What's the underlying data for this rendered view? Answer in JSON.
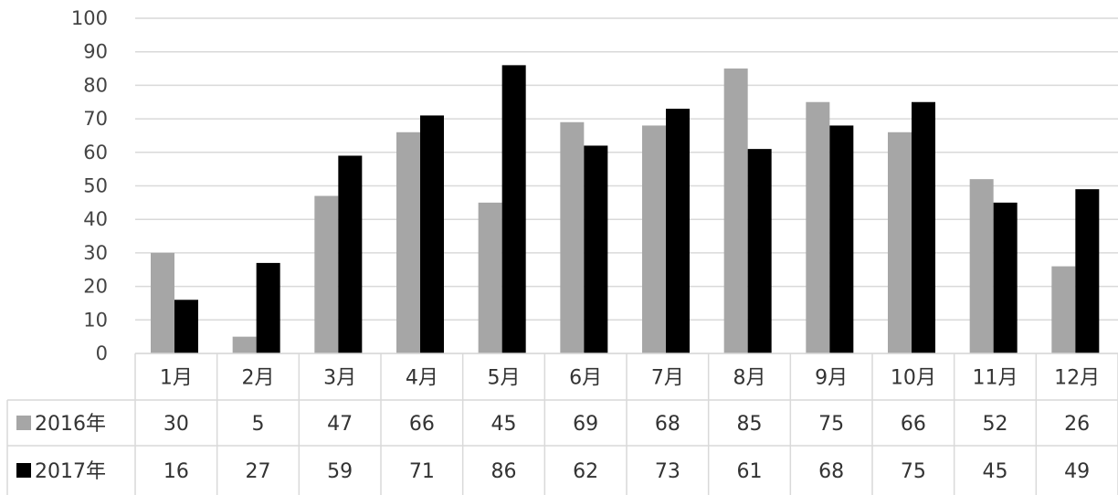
{
  "chart_data": {
    "type": "bar",
    "categories": [
      "1月",
      "2月",
      "3月",
      "4月",
      "5月",
      "6月",
      "7月",
      "8月",
      "9月",
      "10月",
      "11月",
      "12月"
    ],
    "series": [
      {
        "name": "2016年",
        "color": "#a6a6a6",
        "values": [
          30,
          5,
          47,
          66,
          45,
          69,
          68,
          85,
          75,
          66,
          52,
          26
        ]
      },
      {
        "name": "2017年",
        "color": "#000000",
        "values": [
          16,
          27,
          59,
          71,
          86,
          62,
          73,
          61,
          68,
          75,
          45,
          49
        ]
      }
    ],
    "ylim": [
      0,
      100
    ],
    "yticks": [
      0,
      10,
      20,
      30,
      40,
      50,
      60,
      70,
      80,
      90,
      100
    ],
    "grid": true,
    "legend": "data-table-left"
  }
}
